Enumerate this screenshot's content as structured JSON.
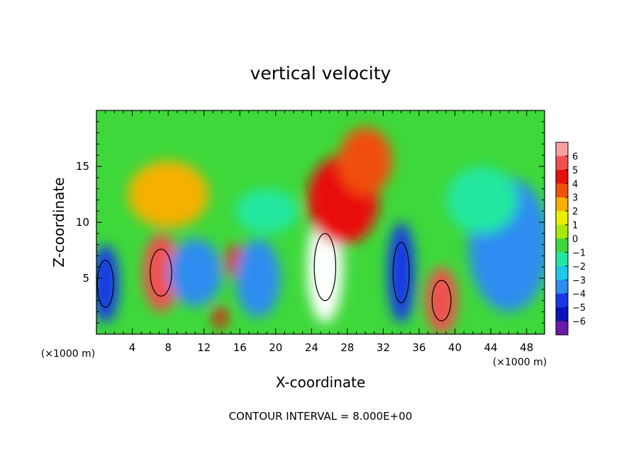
{
  "chart_data": {
    "type": "heatmap",
    "title": "vertical velocity",
    "xlabel": "X-coordinate",
    "ylabel": "Z-coordinate",
    "x_unit_left": "(×1000 m)",
    "x_unit_right": "(×1000 m)",
    "footer": "CONTOUR INTERVAL = 8.000E+00",
    "xlim": [
      0,
      50
    ],
    "ylim": [
      0,
      20
    ],
    "x_ticks": [
      "4",
      "8",
      "12",
      "16",
      "20",
      "24",
      "28",
      "32",
      "36",
      "40",
      "44",
      "48"
    ],
    "y_ticks": [
      "5",
      "10",
      "15"
    ],
    "colorbar": {
      "levels": [
        "6",
        "5",
        "4",
        "3",
        "2",
        "1",
        "0",
        "−1",
        "−2",
        "−3",
        "−4",
        "−5",
        "−6"
      ],
      "colors": [
        "#f7a0a0",
        "#f25050",
        "#e81010",
        "#f0500a",
        "#f5b000",
        "#e8f000",
        "#a8e80c",
        "#3ed83a",
        "#20e8a0",
        "#1ec8e8",
        "#2f8cf0",
        "#1838e8",
        "#0a14b8",
        "#6a1aa8"
      ]
    },
    "features": [
      {
        "x": 25.5,
        "z": 6.0,
        "w": 4.0,
        "h": 10.0,
        "value": 6
      },
      {
        "x": 27.5,
        "z": 12.0,
        "w": 8.0,
        "h": 8.0,
        "value": 4
      },
      {
        "x": 30.0,
        "z": 15.5,
        "w": 6.0,
        "h": 6.0,
        "value": 3
      },
      {
        "x": 7.2,
        "z": 5.5,
        "w": 4.0,
        "h": 7.0,
        "value": 5
      },
      {
        "x": 38.5,
        "z": 3.0,
        "w": 3.5,
        "h": 6.0,
        "value": 5
      },
      {
        "x": 15.5,
        "z": 6.5,
        "w": 2.0,
        "h": 3.0,
        "value": 4
      },
      {
        "x": 13.8,
        "z": 1.5,
        "w": 1.5,
        "h": 2.0,
        "value": 4
      },
      {
        "x": 8.0,
        "z": 12.5,
        "w": 9.0,
        "h": 6.0,
        "value": 2
      },
      {
        "x": 1.0,
        "z": 4.5,
        "w": 3.0,
        "h": 7.0,
        "value": -5
      },
      {
        "x": 11.0,
        "z": 5.5,
        "w": 6.0,
        "h": 6.0,
        "value": -4
      },
      {
        "x": 18.0,
        "z": 5.0,
        "w": 5.0,
        "h": 7.0,
        "value": -4
      },
      {
        "x": 34.0,
        "z": 5.5,
        "w": 3.0,
        "h": 9.0,
        "value": -5
      },
      {
        "x": 46.0,
        "z": 8.0,
        "w": 9.0,
        "h": 12.0,
        "value": -4
      },
      {
        "x": 19.0,
        "z": 11.0,
        "w": 7.0,
        "h": 4.0,
        "value": -2
      },
      {
        "x": 43.0,
        "z": 12.0,
        "w": 8.0,
        "h": 6.0,
        "value": -2
      }
    ]
  }
}
